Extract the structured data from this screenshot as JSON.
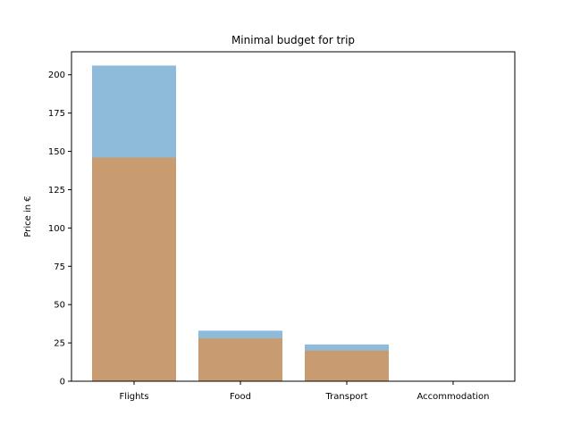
{
  "chart_data": {
    "type": "bar",
    "title": "Minimal budget for trip",
    "xlabel": "",
    "ylabel": "Price in €",
    "categories": [
      "Flights",
      "Food",
      "Transport",
      "Accommodation"
    ],
    "ylim": [
      0,
      215
    ],
    "yticks": [
      0,
      25,
      50,
      75,
      100,
      125,
      150,
      175,
      200
    ],
    "grid": false,
    "legend": "none",
    "series": [
      {
        "values": [
          206,
          33,
          24,
          0
        ],
        "color": "#8fbbdb"
      },
      {
        "values": [
          146,
          28,
          20,
          0
        ],
        "color": "#c89c70"
      }
    ]
  }
}
